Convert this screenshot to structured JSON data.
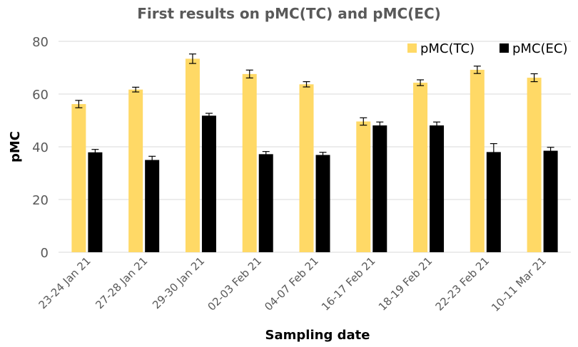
{
  "chart_data": {
    "type": "bar",
    "title": "First results on pMC(TC) and pMC(EC)",
    "xlabel": "Sampling date",
    "ylabel": "pMC",
    "ylim": [
      0,
      80
    ],
    "yticks": [
      0,
      20,
      40,
      60,
      80
    ],
    "grid": true,
    "legend_position": "top-right",
    "categories": [
      "23-24 Jan 21",
      "27-28 Jan 21",
      "29-30 Jan 21",
      "02-03 Feb 21",
      "04-07 Feb 21",
      "16-17 Feb 21",
      "18-19 Feb 21",
      "22-23 Feb 21",
      "10-11 Mar 21"
    ],
    "series": [
      {
        "name": "pMC(TC)",
        "color": "#ffd966",
        "values": [
          56.2,
          61.7,
          73.4,
          67.6,
          63.7,
          49.6,
          64.3,
          69.2,
          66.2
        ],
        "errors": [
          1.4,
          0.9,
          1.8,
          1.5,
          1.0,
          1.4,
          1.1,
          1.4,
          1.5
        ]
      },
      {
        "name": "pMC(EC)",
        "color": "#000000",
        "values": [
          37.9,
          35.0,
          51.8,
          37.2,
          36.9,
          48.1,
          48.1,
          38.0,
          38.5
        ],
        "errors": [
          1.1,
          1.4,
          0.9,
          1.0,
          1.0,
          1.3,
          1.3,
          3.2,
          1.3
        ]
      }
    ]
  }
}
